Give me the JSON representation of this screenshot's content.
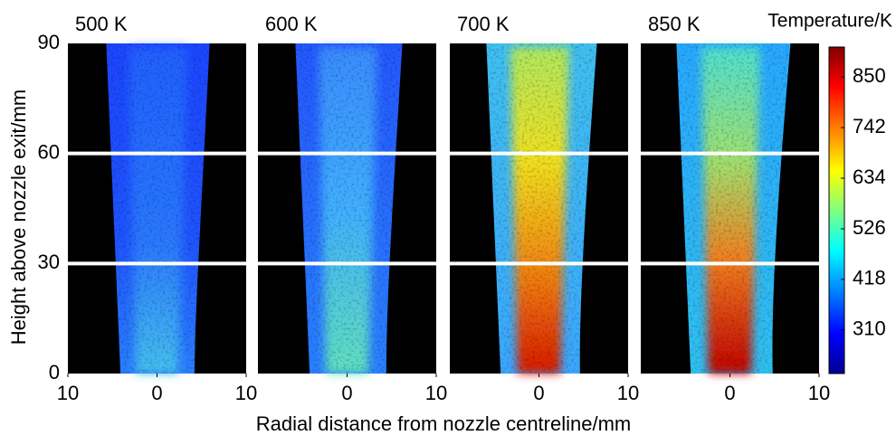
{
  "chart_data": {
    "type": "heatmap",
    "x_label": "Radial distance from nozzle centreline/mm",
    "y_label": "Height above nozzle exit/mm",
    "ylim": [
      0,
      90
    ],
    "yticks": [
      0,
      30,
      60,
      90
    ],
    "panels": [
      {
        "title": "500 K",
        "xlim": [
          -10,
          10
        ],
        "xticks": [
          {
            "value": -10,
            "label": "10"
          },
          0,
          10
        ]
      },
      {
        "title": "600 K",
        "xlim": [
          -10,
          10
        ],
        "xticks": [
          0,
          10
        ]
      },
      {
        "title": "700 K",
        "xlim": [
          -10,
          10
        ],
        "xticks": [
          0,
          10
        ]
      },
      {
        "title": "850 K",
        "xlim": [
          -10,
          10
        ],
        "xticks": [
          0,
          10
        ]
      }
    ],
    "colorbar": {
      "title": "Temperature/K",
      "clim": [
        217,
        914
      ],
      "ticks": [
        310,
        418,
        526,
        634,
        742,
        850
      ]
    }
  }
}
